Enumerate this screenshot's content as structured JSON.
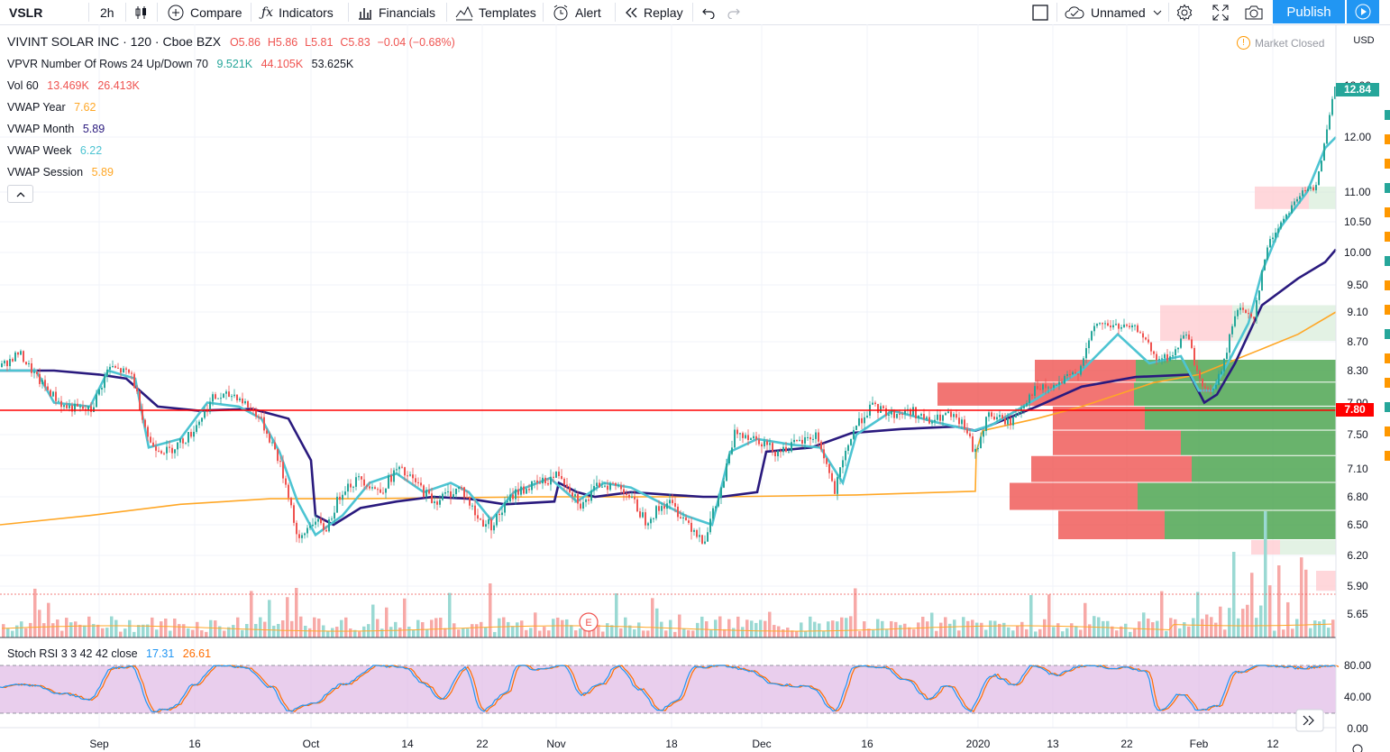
{
  "toolbar": {
    "symbol": "VSLR",
    "interval": "2h",
    "compare": "Compare",
    "indicators": "Indicators",
    "financials": "Financials",
    "templates": "Templates",
    "alert": "Alert",
    "replay": "Replay",
    "layout_name": "Unnamed",
    "publish": "Publish"
  },
  "legend": {
    "title": "VIVINT SOLAR INC · 120 · Cboe BZX",
    "ohlc": {
      "o": "O5.86",
      "h": "H5.86",
      "l": "L5.81",
      "c": "C5.83",
      "chg": "−0.04 (−0.68%)"
    },
    "vpvr": {
      "label": "VPVR Number Of Rows 24 Up/Down 70",
      "up": "9.521K",
      "down": "44.105K",
      "total": "53.625K"
    },
    "vol": {
      "label": "Vol 60",
      "v1": "13.469K",
      "v2": "26.413K"
    },
    "vwap_year": {
      "label": "VWAP Year",
      "value": "7.62"
    },
    "vwap_month": {
      "label": "VWAP Month",
      "value": "5.89"
    },
    "vwap_week": {
      "label": "VWAP Week",
      "value": "6.22"
    },
    "vwap_session": {
      "label": "VWAP Session",
      "value": "5.89"
    }
  },
  "status": {
    "market": "Market Closed"
  },
  "currency": "USD",
  "colors": {
    "up": "#26a69a",
    "down": "#ef5350",
    "vwap_month": "#2a1a7e",
    "vwap_week": "#4dc4d2",
    "vwap_year": "#ffa726",
    "hline": "#ff0000",
    "rsi_k": "#2196f3",
    "rsi_d": "#ff6d00",
    "rsi_band": "#e1bee7"
  },
  "price_axis": [
    "12.00",
    "11.00",
    "10.50",
    "10.00",
    "9.50",
    "9.10",
    "8.70",
    "8.30",
    "7.50",
    "7.10",
    "6.80",
    "6.50",
    "6.20",
    "5.90",
    "5.65"
  ],
  "price_axis_top": "12.00",
  "price_axis_hidden": "7.90",
  "last_price": "12.84",
  "hline_price": "7.80",
  "time_axis": [
    "Sep",
    "16",
    "Oct",
    "14",
    "22",
    "Nov",
    "18",
    "Dec",
    "16",
    "2020",
    "13",
    "22",
    "Feb",
    "12"
  ],
  "earnings_marker": "E",
  "rsi": {
    "label": "Stoch RSI 3 3 42 42 close",
    "k": "17.31",
    "d": "26.61",
    "axis": [
      "80.00",
      "40.00",
      "0.00"
    ]
  }
}
